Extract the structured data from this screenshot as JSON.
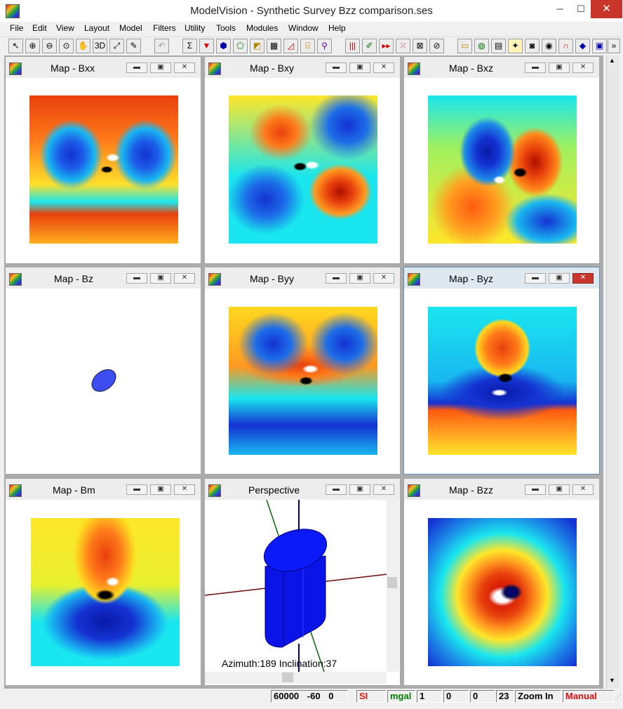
{
  "app": {
    "title": "ModelVision - Synthetic Survey Bzz comparison.ses",
    "minimize": "─",
    "maximize": "☐",
    "close": "✕"
  },
  "menu": [
    "File",
    "Edit",
    "View",
    "Layout",
    "Model",
    "Filters",
    "Utility",
    "Tools",
    "Modules",
    "Window",
    "Help"
  ],
  "toolbar_icons": [
    "pointer-icon",
    "zoom-in-icon",
    "zoom-out-icon",
    "zoom-window-icon",
    "pan-hand-icon",
    "3d-view-icon",
    "fit-all-icon",
    "paint-brush-icon",
    "undo-icon",
    "sum-icon",
    "vector-icon",
    "edit-body-icon",
    "polygon-icon",
    "layers-icon",
    "grid-icon",
    "profile-icon",
    "cylinder-icon",
    "probe-icon",
    "bars-icon",
    "pencil-icon",
    "play-icon",
    "dots-grid-icon",
    "cross-grid-icon",
    "section-icon",
    "ruler-icon",
    "globe-icon",
    "calculator-icon",
    "bulb-icon",
    "camera-icon",
    "eye-icon",
    "magnet-icon",
    "prism-icon",
    "film-icon",
    "more-icon"
  ],
  "child_buttons": {
    "minimize": "▬",
    "restore": "▣",
    "close": "✕"
  },
  "windows": [
    {
      "id": "bxx",
      "title": "Map - Bxx"
    },
    {
      "id": "bxy",
      "title": "Map - Bxy"
    },
    {
      "id": "bxz",
      "title": "Map - Bxz"
    },
    {
      "id": "bz",
      "title": "Map - Bz"
    },
    {
      "id": "byy",
      "title": "Map - Byy"
    },
    {
      "id": "byz",
      "title": "Map - Byz"
    },
    {
      "id": "bm",
      "title": "Map - Bm"
    },
    {
      "id": "perspective",
      "title": "Perspective",
      "caption": "Azimuth:189 Inclination:37"
    },
    {
      "id": "bzz",
      "title": "Map - Bzz"
    }
  ],
  "colors": {
    "low": "#1432d2",
    "mid_cyan": "#19e6ee",
    "mid_yellow": "#fff22a",
    "high": "#e8400c",
    "body": "#0a14f0",
    "accent_red": "#e01010",
    "accent_green": "#008000"
  },
  "status": {
    "scale": "60000",
    "inclination": "-60",
    "declination": "0",
    "units": "SI",
    "gravity_units": "mgal",
    "f1": "1",
    "f2": "0",
    "f3": "0",
    "f4": "23",
    "mode": "Zoom In",
    "render": "Manual"
  }
}
